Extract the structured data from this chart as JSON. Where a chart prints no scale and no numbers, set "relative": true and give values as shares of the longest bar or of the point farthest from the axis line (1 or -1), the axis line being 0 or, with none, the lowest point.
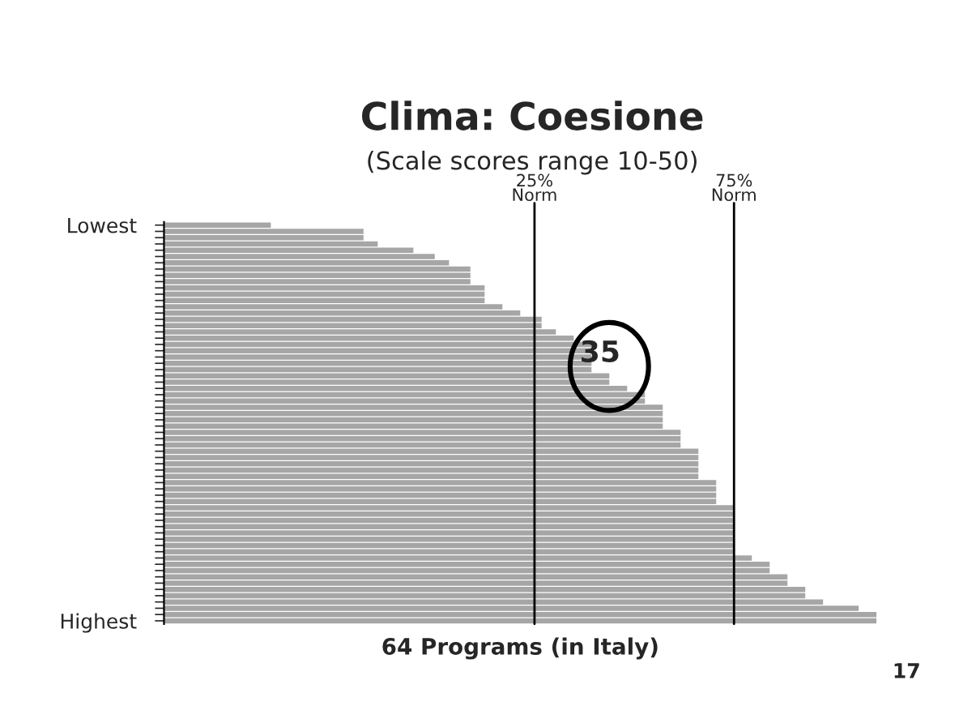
{
  "chart_data": {
    "type": "bar",
    "orientation": "horizontal",
    "relative": true,
    "title": "Clima: Coesione",
    "subtitle": "(Scale scores range 10-50)",
    "xlabel": "64 Programs (in Italy)",
    "categories": [
      "Lowest",
      null,
      null,
      null,
      null,
      null,
      null,
      null,
      null,
      null,
      null,
      null,
      null,
      null,
      null,
      null,
      null,
      null,
      null,
      null,
      null,
      null,
      null,
      null,
      null,
      null,
      null,
      null,
      null,
      null,
      null,
      null,
      null,
      null,
      null,
      null,
      null,
      null,
      null,
      null,
      null,
      null,
      null,
      null,
      null,
      null,
      null,
      null,
      null,
      null,
      null,
      null,
      null,
      null,
      null,
      null,
      null,
      null,
      null,
      null,
      null,
      null,
      null,
      "Highest"
    ],
    "values": [
      0.15,
      0.28,
      0.28,
      0.3,
      0.35,
      0.38,
      0.4,
      0.43,
      0.43,
      0.43,
      0.45,
      0.45,
      0.45,
      0.475,
      0.5,
      0.53,
      0.53,
      0.55,
      0.575,
      0.6,
      0.6,
      0.6,
      0.6,
      0.6,
      0.625,
      0.625,
      0.65,
      0.675,
      0.675,
      0.7,
      0.7,
      0.7,
      0.7,
      0.725,
      0.725,
      0.725,
      0.75,
      0.75,
      0.75,
      0.75,
      0.75,
      0.775,
      0.775,
      0.775,
      0.775,
      0.8,
      0.8,
      0.8,
      0.8,
      0.8,
      0.8,
      0.8,
      0.8,
      0.825,
      0.85,
      0.85,
      0.875,
      0.875,
      0.9,
      0.9,
      0.925,
      0.975,
      1.0,
      1.0
    ],
    "color": "#a6a6a6",
    "ref_lines": [
      {
        "axis": "x",
        "value": 0.52,
        "label": "25%\nNorm",
        "color": "#000000"
      },
      {
        "axis": "x",
        "value": 0.8,
        "label": "75%\nNorm",
        "color": "#000000"
      }
    ],
    "annotations": [
      "35",
      "17"
    ]
  }
}
